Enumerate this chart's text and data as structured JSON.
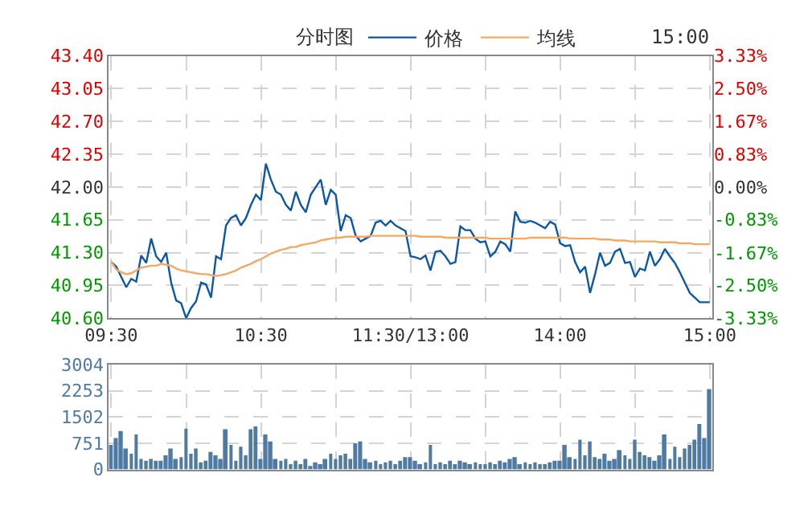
{
  "chart_data": [
    {
      "type": "line",
      "title": "分时图",
      "annotations": [
        "15:00"
      ],
      "legend": "top",
      "grid": true,
      "marker": "none",
      "line_style": "solid",
      "categories": [
        "09:30",
        null,
        null,
        null,
        null,
        null,
        null,
        null,
        null,
        null,
        null,
        null,
        null,
        null,
        null,
        null,
        null,
        null,
        null,
        null,
        null,
        null,
        null,
        null,
        null,
        null,
        null,
        null,
        null,
        null,
        "10:30",
        null,
        null,
        null,
        null,
        null,
        null,
        null,
        null,
        null,
        null,
        null,
        null,
        null,
        null,
        null,
        null,
        null,
        null,
        null,
        null,
        null,
        null,
        null,
        null,
        null,
        null,
        null,
        null,
        null,
        "11:30/13:00",
        null,
        null,
        null,
        null,
        null,
        null,
        null,
        null,
        null,
        null,
        null,
        null,
        null,
        null,
        null,
        null,
        null,
        null,
        null,
        null,
        null,
        null,
        null,
        null,
        null,
        null,
        null,
        null,
        null,
        "14:00",
        null,
        null,
        null,
        null,
        null,
        null,
        null,
        null,
        null,
        null,
        null,
        null,
        null,
        null,
        null,
        null,
        null,
        null,
        null,
        null,
        null,
        null,
        null,
        null,
        null,
        null,
        null,
        null,
        null,
        "15:00"
      ],
      "ylim": [
        40.6,
        43.4
      ],
      "yticks": [
        {
          "value": 40.6,
          "label": "40.60"
        },
        {
          "value": 40.95,
          "label": "40.95"
        },
        {
          "value": 41.3,
          "label": "41.30"
        },
        {
          "value": 41.65,
          "label": "41.65"
        },
        {
          "value": 42.0,
          "label": "42.00"
        },
        {
          "value": 42.35,
          "label": "42.35"
        },
        {
          "value": 42.7,
          "label": "42.70"
        },
        {
          "value": 43.05,
          "label": "43.05"
        },
        {
          "value": 43.4,
          "label": "43.40"
        }
      ],
      "y2lim": [
        -3.33,
        3.33
      ],
      "y2ticks": [
        {
          "value": -3.33,
          "label": "-3.33%"
        },
        {
          "value": -2.5,
          "label": "-2.50%"
        },
        {
          "value": -1.67,
          "label": "-1.67%"
        },
        {
          "value": -0.83,
          "label": "-0.83%"
        },
        {
          "value": 0,
          "label": "0.00%"
        },
        {
          "value": 0.83,
          "label": "0.83%"
        },
        {
          "value": 1.67,
          "label": "1.67%"
        },
        {
          "value": 2.5,
          "label": "2.50%"
        },
        {
          "value": 3.33,
          "label": "3.33%"
        }
      ],
      "series": [
        {
          "name": "价格",
          "color": "#0c57a6",
          "values": [
            41.2,
            41.15,
            41.04,
            40.93,
            41.02,
            40.99,
            41.27,
            41.19,
            41.45,
            41.26,
            41.2,
            41.3,
            40.98,
            40.79,
            40.76,
            40.6,
            40.71,
            40.78,
            40.98,
            40.96,
            40.82,
            41.26,
            41.23,
            41.59,
            41.67,
            41.7,
            41.59,
            41.67,
            41.81,
            41.92,
            41.86,
            42.25,
            42.08,
            41.95,
            41.92,
            41.81,
            41.75,
            41.95,
            41.81,
            41.73,
            41.92,
            42.0,
            42.08,
            41.81,
            41.97,
            41.92,
            41.53,
            41.7,
            41.67,
            41.48,
            41.42,
            41.45,
            41.48,
            41.62,
            41.64,
            41.59,
            41.64,
            41.59,
            41.56,
            41.53,
            41.26,
            41.25,
            41.23,
            41.27,
            41.11,
            41.31,
            41.32,
            41.26,
            41.18,
            41.2,
            41.58,
            41.54,
            41.54,
            41.45,
            41.41,
            41.42,
            41.26,
            41.31,
            41.42,
            41.39,
            41.31,
            41.74,
            41.63,
            41.62,
            41.64,
            41.62,
            41.59,
            41.56,
            41.63,
            41.6,
            41.4,
            41.37,
            41.38,
            41.2,
            41.09,
            41.15,
            40.87,
            41.07,
            41.3,
            41.16,
            41.19,
            41.31,
            41.34,
            41.19,
            41.2,
            41.04,
            41.13,
            41.11,
            41.31,
            41.16,
            41.23,
            41.34,
            41.26,
            41.19,
            41.09,
            40.98,
            40.87,
            40.82,
            40.77,
            40.77,
            40.77
          ]
        },
        {
          "name": "均线",
          "color": "#f5a860",
          "values": [
            41.2,
            41.12,
            41.09,
            41.07,
            41.08,
            41.11,
            41.14,
            41.15,
            41.16,
            41.16,
            41.18,
            41.17,
            41.16,
            41.13,
            41.11,
            41.1,
            41.09,
            41.08,
            41.07,
            41.07,
            41.06,
            41.05,
            41.06,
            41.07,
            41.09,
            41.11,
            41.14,
            41.16,
            41.18,
            41.21,
            41.23,
            41.26,
            41.29,
            41.31,
            41.33,
            41.34,
            41.36,
            41.36,
            41.38,
            41.39,
            41.4,
            41.41,
            41.43,
            41.44,
            41.45,
            41.46,
            41.46,
            41.47,
            41.47,
            41.47,
            41.47,
            41.47,
            41.48,
            41.48,
            41.48,
            41.48,
            41.48,
            41.48,
            41.48,
            41.48,
            41.48,
            41.48,
            41.47,
            41.47,
            41.47,
            41.47,
            41.47,
            41.46,
            41.46,
            41.46,
            41.46,
            41.46,
            41.46,
            41.46,
            41.46,
            41.46,
            41.45,
            41.45,
            41.45,
            41.45,
            41.45,
            41.45,
            41.45,
            41.45,
            41.46,
            41.46,
            41.46,
            41.46,
            41.46,
            41.46,
            41.46,
            41.46,
            41.45,
            41.45,
            41.45,
            41.45,
            41.45,
            41.45,
            41.44,
            41.44,
            41.44,
            41.43,
            41.43,
            41.43,
            41.42,
            41.42,
            41.42,
            41.42,
            41.42,
            41.42,
            41.41,
            41.41,
            41.41,
            41.41,
            41.4,
            41.4,
            41.4,
            41.39,
            41.39,
            41.39,
            41.39
          ]
        }
      ]
    },
    {
      "type": "bar",
      "grid": true,
      "tick_labels": "y",
      "categories": [
        null,
        null,
        null,
        null,
        null,
        null,
        null,
        null,
        null,
        null,
        null,
        null,
        null,
        null,
        null,
        null,
        null,
        null,
        null,
        null,
        null,
        null,
        null,
        null,
        null,
        null,
        null,
        null,
        null,
        null,
        null,
        null,
        null,
        null,
        null,
        null,
        null,
        null,
        null,
        null,
        null,
        null,
        null,
        null,
        null,
        null,
        null,
        null,
        null,
        null,
        null,
        null,
        null,
        null,
        null,
        null,
        null,
        null,
        null,
        null,
        null,
        null,
        null,
        null,
        null,
        null,
        null,
        null,
        null,
        null,
        null,
        null,
        null,
        null,
        null,
        null,
        null,
        null,
        null,
        null,
        null,
        null,
        null,
        null,
        null,
        null,
        null,
        null,
        null,
        null,
        null,
        null,
        null,
        null,
        null,
        null,
        null,
        null,
        null,
        null,
        null,
        null,
        null,
        null,
        null,
        null,
        null,
        null,
        null,
        null,
        null,
        null,
        null,
        null,
        null,
        null,
        null,
        null,
        null,
        null,
        null
      ],
      "ylim": [
        0,
        3004
      ],
      "yticks": [
        0,
        751,
        1502,
        2253,
        3004
      ],
      "series": [
        {
          "color": "#4e7aa3",
          "values": [
            700,
            900,
            1100,
            600,
            450,
            1000,
            300,
            250,
            300,
            250,
            250,
            400,
            600,
            300,
            350,
            1170,
            450,
            600,
            200,
            250,
            500,
            400,
            300,
            1150,
            700,
            250,
            650,
            400,
            1150,
            1230,
            300,
            1000,
            800,
            300,
            250,
            300,
            150,
            250,
            150,
            300,
            100,
            200,
            150,
            300,
            450,
            300,
            400,
            450,
            300,
            750,
            800,
            300,
            200,
            250,
            150,
            200,
            250,
            150,
            250,
            350,
            350,
            250,
            150,
            200,
            700,
            150,
            200,
            150,
            250,
            150,
            250,
            200,
            150,
            200,
            150,
            150,
            200,
            150,
            250,
            200,
            300,
            350,
            150,
            200,
            150,
            200,
            150,
            150,
            200,
            250,
            250,
            700,
            350,
            300,
            850,
            400,
            800,
            350,
            300,
            450,
            250,
            300,
            550,
            400,
            300,
            850,
            500,
            400,
            350,
            250,
            400,
            1000,
            300,
            650,
            350,
            600,
            700,
            850,
            1300,
            900,
            2300
          ]
        }
      ]
    }
  ]
}
